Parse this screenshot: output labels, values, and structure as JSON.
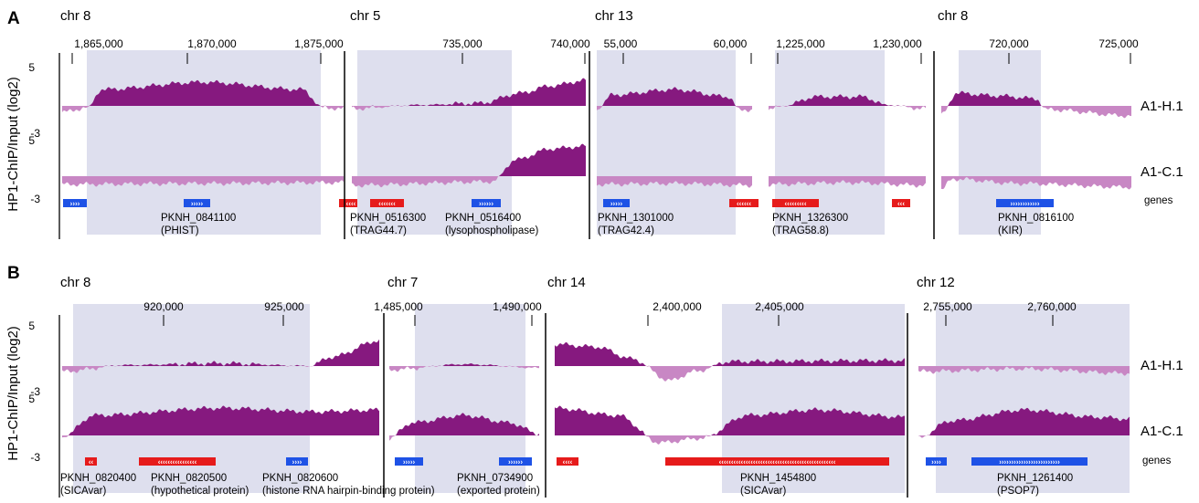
{
  "panels": [
    {
      "letter": "A",
      "ylabel": "HP1-ChIP/Input (log2)",
      "yticks": {
        "h_top": "5",
        "h_bottom": "-3",
        "c_top": "5",
        "c_bottom": "-3"
      },
      "tracks": [
        "A1-H.1",
        "A1-C.1"
      ],
      "genes_label": "genes",
      "segments": [
        {
          "chrom": "chr 8",
          "ticks": [
            "1,865,000",
            "1,870,000",
            "1,875,000"
          ],
          "genes": [
            {
              "color": "#1e52e6",
              "dir": "right",
              "id": "",
              "product": ""
            },
            {
              "color": "#1e52e6",
              "dir": "right",
              "id": "PKNH_0841100",
              "product": "(PHIST)"
            },
            {
              "color": "#e61b1b",
              "dir": "left",
              "id": "",
              "product": ""
            }
          ],
          "h1_profile": "high enrichment plateau across the shaded region",
          "c1_profile": "below baseline throughout"
        },
        {
          "chrom": "chr  5",
          "ticks": [
            "735,000",
            "740,000"
          ],
          "genes": [
            {
              "color": "#e61b1b",
              "dir": "left",
              "id": "PKNH_0516300",
              "product": "(TRAG44.7)"
            },
            {
              "color": "#1e52e6",
              "dir": "right",
              "id": "PKNH_0516400",
              "product": "(lysophospholipase)"
            }
          ],
          "h1_profile": "rising enrichment toward the right",
          "c1_profile": "low, then strong enrichment at the right end"
        },
        {
          "chrom": "chr 13",
          "ticks": [
            "55,000",
            "60,000"
          ],
          "genes": [
            {
              "color": "#1e52e6",
              "dir": "right",
              "id": "PKNH_1301000",
              "product": "(TRAG42.4)"
            },
            {
              "color": "#e61b1b",
              "dir": "left",
              "id": "",
              "product": ""
            }
          ],
          "h1_profile": "moderate enrichment over the shaded region",
          "c1_profile": "below baseline"
        },
        {
          "chrom": "",
          "ticks": [
            "1,225,000",
            "1,230,000"
          ],
          "genes": [
            {
              "color": "#e61b1b",
              "dir": "left",
              "id": "PKNH_1326300",
              "product": "(TRAG58.8)"
            },
            {
              "color": "#e61b1b",
              "dir": "left",
              "id": "",
              "product": ""
            }
          ],
          "h1_profile": "moderate enrichment over the shaded region",
          "c1_profile": "below baseline"
        },
        {
          "chrom": "chr 8",
          "ticks": [
            "720,000",
            "725,000"
          ],
          "genes": [
            {
              "color": "#1e52e6",
              "dir": "right",
              "id": "PKNH_0816100",
              "product": "(KIR)"
            }
          ],
          "h1_profile": "enrichment at the left shaded region, depletion to the right",
          "c1_profile": "below baseline"
        }
      ]
    },
    {
      "letter": "B",
      "ylabel": "HP1-ChIP/Input (log2)",
      "yticks": {
        "h_top": "5",
        "h_bottom": "-3",
        "c_top": "5",
        "c_bottom": "-3"
      },
      "tracks": [
        "A1-H.1",
        "A1-C.1"
      ],
      "genes_label": "genes",
      "segments": [
        {
          "chrom": "chr 8",
          "ticks": [
            "920,000",
            "925,000"
          ],
          "genes": [
            {
              "color": "#e61b1b",
              "dir": "left",
              "id": "PKNH_0820400",
              "product": "(SICAvar)"
            },
            {
              "color": "#e61b1b",
              "dir": "left",
              "id": "PKNH_0820500",
              "product": "(hypothetical protein)"
            },
            {
              "color": "#1e52e6",
              "dir": "right",
              "id": "PKNH_0820600",
              "product": "(histone RNA hairpin-binding protein)"
            }
          ],
          "h1_profile": "near baseline, rising at the right end",
          "c1_profile": "broad enrichment across the shaded region"
        },
        {
          "chrom": "chr 7",
          "ticks": [
            "1,485,000",
            "1,490,000"
          ],
          "genes": [
            {
              "color": "#1e52e6",
              "dir": "right",
              "id": "",
              "product": ""
            },
            {
              "color": "#1e52e6",
              "dir": "right",
              "id": "PKNH_0734900",
              "product": "(exported protein)"
            }
          ],
          "h1_profile": "near baseline",
          "c1_profile": "enrichment over the shaded region"
        },
        {
          "chrom": "chr 14",
          "ticks": [
            "2,400,000",
            "2,405,000"
          ],
          "genes": [
            {
              "color": "#e61b1b",
              "dir": "left",
              "id": "",
              "product": ""
            },
            {
              "color": "#e61b1b",
              "dir": "left",
              "id": "PKNH_1454800",
              "product": "(SICAvar)"
            }
          ],
          "h1_profile": "enrichment at the left end, dip, then moderate",
          "c1_profile": "enrichment at left, dip, then broad enrichment"
        },
        {
          "chrom": "chr 12",
          "ticks": [
            "2,755,000",
            "2,760,000"
          ],
          "genes": [
            {
              "color": "#1e52e6",
              "dir": "right",
              "id": "",
              "product": ""
            },
            {
              "color": "#1e52e6",
              "dir": "right",
              "id": "PKNH_1261400",
              "product": "(PSOP7)"
            }
          ],
          "h1_profile": "near baseline",
          "c1_profile": "broad enrichment across the shaded region"
        }
      ]
    }
  ],
  "colors": {
    "enriched": "#86197f",
    "depleted": "#c887c4",
    "shade": "#dedfee",
    "gene_red": "#e61b1b",
    "gene_blue": "#1e52e6"
  }
}
